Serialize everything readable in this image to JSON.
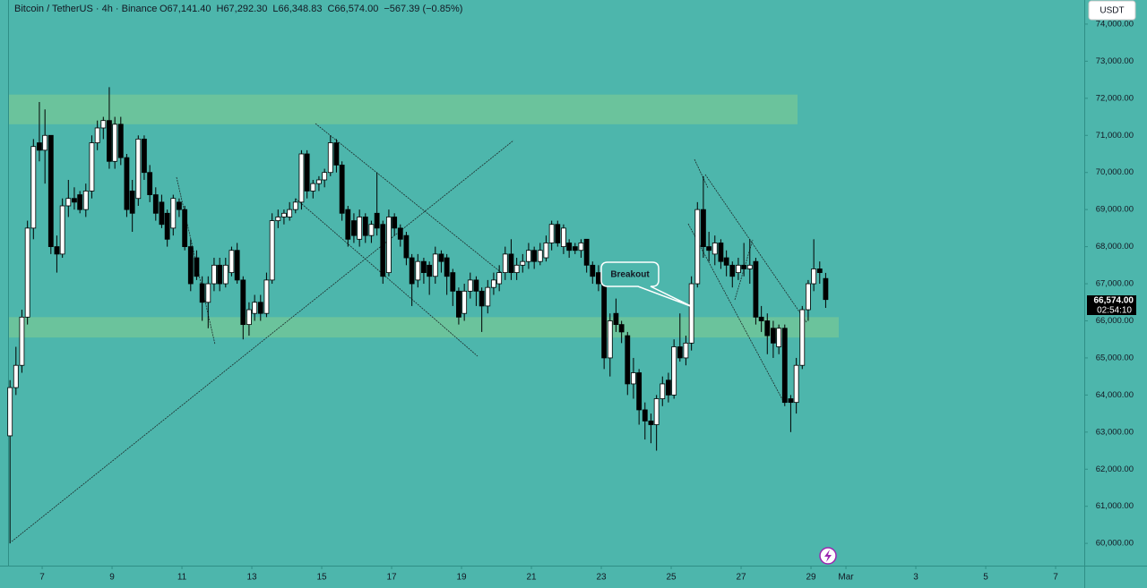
{
  "chart_data": {
    "type": "candlestick",
    "header": {
      "symbol": "Bitcoin / TetherUS · 4h · Binance",
      "ohlc_text": [
        "O67,141.40",
        "H67,292.30",
        "L66,348.83",
        "C66,574.00",
        "−567.39 (−0.85%)"
      ]
    },
    "currency": "USDT",
    "last_price_label": "66,574.00",
    "countdown": "02:54:10",
    "annotation": "Breakout",
    "xlim": [
      6.05,
      36.82
    ],
    "xticks": [
      7,
      9,
      11,
      13,
      15,
      17,
      19,
      21,
      23,
      25,
      27,
      29,
      {
        "value": 30,
        "label": "Mar"
      },
      {
        "value": 32,
        "label": "3"
      },
      {
        "value": 34,
        "label": "5"
      },
      {
        "value": 36,
        "label": "7"
      }
    ],
    "ylim": [
      59400,
      74650
    ],
    "yticks": [
      {
        "value": 60000,
        "label": "60,000.00"
      },
      {
        "value": 61000,
        "label": "61,000.00"
      },
      {
        "value": 62000,
        "label": "62,000.00"
      },
      {
        "value": 63000,
        "label": "63,000.00"
      },
      {
        "value": 64000,
        "label": "64,000.00"
      },
      {
        "value": 65000,
        "label": "65,000.00"
      },
      {
        "value": 66000,
        "label": "66,000.00"
      },
      {
        "value": 67000,
        "label": "67,000.00"
      },
      {
        "value": 68000,
        "label": "68,000.00"
      },
      {
        "value": 69000,
        "label": "69,000.00"
      },
      {
        "value": 70000,
        "label": "70,000.00"
      },
      {
        "value": 71000,
        "label": "71,000.00"
      },
      {
        "value": 72000,
        "label": "72,000.00"
      },
      {
        "value": 73000,
        "label": "73,000.00"
      },
      {
        "value": 74000,
        "label": "74,000.00"
      }
    ],
    "zones": [
      {
        "low": 71300,
        "high": 72100
      },
      {
        "low": 65550,
        "high": 66100
      }
    ],
    "up_color": "#ffffff",
    "down_color": "#000000",
    "x": [
      6.08,
      6.25,
      6.42,
      6.58,
      6.75,
      6.92,
      7.08,
      7.25,
      7.42,
      7.58,
      7.75,
      7.92,
      8.08,
      8.25,
      8.42,
      8.58,
      8.75,
      8.92,
      9.08,
      9.25,
      9.42,
      9.58,
      9.75,
      9.92,
      10.08,
      10.25,
      10.42,
      10.58,
      10.75,
      10.92,
      11.08,
      11.25,
      11.42,
      11.58,
      11.75,
      11.92,
      12.08,
      12.25,
      12.42,
      12.58,
      12.75,
      12.92,
      13.08,
      13.25,
      13.42,
      13.58,
      13.75,
      13.92,
      14.08,
      14.25,
      14.42,
      14.58,
      14.75,
      14.92,
      15.08,
      15.25,
      15.42,
      15.58,
      15.75,
      15.92,
      16.08,
      16.25,
      16.42,
      16.58,
      16.75,
      16.92,
      17.08,
      17.25,
      17.42,
      17.58,
      17.75,
      17.92,
      18.08,
      18.25,
      18.42,
      18.58,
      18.75,
      18.92,
      19.08,
      19.25,
      19.42,
      19.58,
      19.75,
      19.92,
      20.08,
      20.25,
      20.42,
      20.58,
      20.75,
      20.92,
      21.08,
      21.25,
      21.42,
      21.58,
      21.75,
      21.92,
      22.08,
      22.25,
      22.42,
      22.58,
      22.75,
      22.92,
      23.08,
      23.25,
      23.42,
      23.58,
      23.75,
      23.92,
      24.08,
      24.25,
      24.42,
      24.58,
      24.75,
      24.92,
      25.08,
      25.25,
      25.42,
      25.58,
      25.75,
      25.92,
      26.08,
      26.25,
      26.42,
      26.58,
      26.75,
      26.92,
      27.08,
      27.25,
      27.42,
      27.58,
      27.75,
      27.92,
      28.08,
      28.25,
      28.42,
      28.58,
      28.75,
      28.92,
      29.08,
      29.25,
      29.42
    ],
    "ohlc": [
      [
        62900,
        64400,
        60000,
        64200
      ],
      [
        64200,
        65300,
        64000,
        64800
      ],
      [
        64800,
        66300,
        64600,
        66100
      ],
      [
        66100,
        68700,
        65900,
        68500
      ],
      [
        68500,
        70900,
        68200,
        70700
      ],
      [
        70800,
        71900,
        70300,
        70600
      ],
      [
        70600,
        71700,
        69700,
        71000
      ],
      [
        71000,
        71000,
        67800,
        68000
      ],
      [
        68000,
        68300,
        67300,
        67800
      ],
      [
        67800,
        69300,
        67700,
        69100
      ],
      [
        69100,
        69800,
        68800,
        69300
      ],
      [
        69300,
        69600,
        69000,
        69200
      ],
      [
        69400,
        69500,
        68900,
        69000
      ],
      [
        69000,
        69700,
        68800,
        69500
      ],
      [
        69500,
        71000,
        69300,
        70800
      ],
      [
        70800,
        71400,
        70600,
        71200
      ],
      [
        71200,
        71500,
        70900,
        71400
      ],
      [
        71400,
        72300,
        70100,
        70300
      ],
      [
        70300,
        71500,
        70100,
        71300
      ],
      [
        71300,
        71500,
        70200,
        70400
      ],
      [
        70400,
        70500,
        68800,
        69000
      ],
      [
        69500,
        69800,
        68400,
        68900
      ],
      [
        69300,
        71000,
        69100,
        70900
      ],
      [
        70900,
        71000,
        69800,
        70000
      ],
      [
        70000,
        70200,
        69200,
        69400
      ],
      [
        69400,
        69600,
        68700,
        68900
      ],
      [
        69200,
        69400,
        68500,
        68600
      ],
      [
        68900,
        69000,
        68000,
        68200
      ],
      [
        68500,
        69400,
        68300,
        69300
      ],
      [
        69200,
        69300,
        68800,
        69000
      ],
      [
        69000,
        69100,
        67900,
        68000
      ],
      [
        68000,
        68200,
        66800,
        67000
      ],
      [
        67700,
        67900,
        67100,
        67200
      ],
      [
        67000,
        67200,
        66000,
        66500
      ],
      [
        66500,
        67200,
        65800,
        67000
      ],
      [
        67000,
        67700,
        66800,
        67500
      ],
      [
        67500,
        67700,
        66800,
        67000
      ],
      [
        67000,
        67700,
        66900,
        67500
      ],
      [
        67300,
        68000,
        67200,
        67900
      ],
      [
        67900,
        68100,
        67000,
        67100
      ],
      [
        67100,
        67200,
        65500,
        65900
      ],
      [
        65900,
        66500,
        65600,
        66300
      ],
      [
        66200,
        66700,
        66000,
        66500
      ],
      [
        66500,
        66700,
        66000,
        66200
      ],
      [
        66200,
        67300,
        66100,
        67100
      ],
      [
        67100,
        68900,
        67000,
        68700
      ],
      [
        68700,
        69000,
        68500,
        68800
      ],
      [
        68800,
        69000,
        68600,
        68900
      ],
      [
        68800,
        69200,
        68700,
        69000
      ],
      [
        69000,
        69300,
        68900,
        69200
      ],
      [
        69200,
        70600,
        69000,
        70500
      ],
      [
        70500,
        70600,
        69300,
        69500
      ],
      [
        69500,
        69800,
        69300,
        69700
      ],
      [
        69700,
        69900,
        69500,
        69800
      ],
      [
        69800,
        70100,
        69600,
        70000
      ],
      [
        70000,
        71000,
        69900,
        70800
      ],
      [
        70800,
        70900,
        70000,
        70200
      ],
      [
        70200,
        70300,
        68700,
        68900
      ],
      [
        69000,
        69100,
        68000,
        68200
      ],
      [
        68700,
        68900,
        68100,
        68300
      ],
      [
        68200,
        69000,
        68000,
        68800
      ],
      [
        68800,
        68900,
        68100,
        68300
      ],
      [
        68300,
        68700,
        68100,
        68600
      ],
      [
        68900,
        70000,
        68300,
        68500
      ],
      [
        68600,
        68700,
        67000,
        67200
      ],
      [
        67300,
        69000,
        67200,
        68800
      ],
      [
        68800,
        68900,
        68300,
        68500
      ],
      [
        68500,
        68600,
        68000,
        68200
      ],
      [
        68300,
        68400,
        67500,
        67700
      ],
      [
        67700,
        67800,
        66400,
        67000
      ],
      [
        67100,
        67800,
        66900,
        67600
      ],
      [
        67600,
        67700,
        67000,
        67300
      ],
      [
        67500,
        67600,
        66700,
        67200
      ],
      [
        67200,
        68000,
        67000,
        67800
      ],
      [
        67800,
        67900,
        67300,
        67600
      ],
      [
        67700,
        67800,
        66700,
        67200
      ],
      [
        67300,
        67400,
        66400,
        66800
      ],
      [
        66800,
        66900,
        65900,
        66100
      ],
      [
        66200,
        67000,
        66000,
        66800
      ],
      [
        66800,
        67300,
        66600,
        67100
      ],
      [
        67100,
        67200,
        66400,
        66800
      ],
      [
        66800,
        66900,
        65700,
        66400
      ],
      [
        66400,
        67100,
        66200,
        66900
      ],
      [
        66900,
        67300,
        66700,
        67100
      ],
      [
        67000,
        67500,
        66800,
        67300
      ],
      [
        67300,
        68000,
        67100,
        67800
      ],
      [
        67800,
        68200,
        67100,
        67300
      ],
      [
        67300,
        67700,
        67100,
        67500
      ],
      [
        67500,
        67800,
        67300,
        67600
      ],
      [
        67600,
        68100,
        67400,
        67900
      ],
      [
        67900,
        68000,
        67400,
        67600
      ],
      [
        67600,
        68100,
        67500,
        67900
      ],
      [
        67700,
        68300,
        67600,
        68100
      ],
      [
        68100,
        68700,
        67900,
        68600
      ],
      [
        68600,
        68700,
        68000,
        68100
      ],
      [
        68000,
        68600,
        67800,
        68500
      ],
      [
        68100,
        68200,
        67700,
        67900
      ],
      [
        68000,
        68100,
        67800,
        67900
      ],
      [
        67900,
        68200,
        67700,
        68100
      ],
      [
        68200,
        68200,
        67300,
        67500
      ],
      [
        67500,
        67600,
        67000,
        67200
      ],
      [
        67300,
        67500,
        66800,
        67000
      ],
      [
        67200,
        67300,
        64700,
        65000
      ],
      [
        65000,
        66200,
        64500,
        66000
      ],
      [
        66200,
        66600,
        65700,
        65900
      ],
      [
        65900,
        66000,
        65400,
        65700
      ],
      [
        65600,
        65700,
        64000,
        64300
      ],
      [
        64300,
        65000,
        63900,
        64600
      ],
      [
        64600,
        64700,
        63200,
        63600
      ],
      [
        63600,
        63800,
        62800,
        63300
      ],
      [
        63300,
        63500,
        62700,
        63200
      ],
      [
        63200,
        64000,
        62500,
        63900
      ],
      [
        63900,
        64500,
        63700,
        64300
      ],
      [
        64400,
        64600,
        63800,
        64000
      ],
      [
        64000,
        65500,
        63900,
        65300
      ],
      [
        65300,
        66200,
        64900,
        65000
      ],
      [
        65000,
        65600,
        64800,
        65400
      ],
      [
        65400,
        67200,
        65200,
        67000
      ],
      [
        67000,
        69200,
        66900,
        69000
      ],
      [
        69000,
        69900,
        67700,
        68000
      ],
      [
        68000,
        68400,
        67600,
        67900
      ],
      [
        67800,
        68300,
        67500,
        68100
      ],
      [
        68100,
        68200,
        67400,
        67600
      ],
      [
        67700,
        67900,
        67200,
        67500
      ],
      [
        67500,
        67600,
        66900,
        67200
      ],
      [
        67300,
        67700,
        67100,
        67500
      ],
      [
        67500,
        68100,
        67200,
        67400
      ],
      [
        67400,
        68200,
        67000,
        67500
      ],
      [
        67600,
        67700,
        65900,
        66100
      ],
      [
        66100,
        66400,
        65700,
        66000
      ],
      [
        66000,
        66200,
        65100,
        65600
      ],
      [
        65800,
        66000,
        65000,
        65400
      ],
      [
        65300,
        65900,
        65100,
        65800
      ],
      [
        65800,
        65900,
        63700,
        63800
      ],
      [
        63900,
        64000,
        63000,
        63800
      ],
      [
        63800,
        65000,
        63500,
        64800
      ],
      [
        64800,
        66400,
        64700,
        66300
      ],
      [
        66300,
        67100,
        66000,
        67000
      ],
      [
        67000,
        68200,
        66800,
        67400
      ],
      [
        67400,
        67600,
        67000,
        67300
      ],
      [
        67141.4,
        67292.3,
        66348.83,
        66574
      ]
    ]
  }
}
